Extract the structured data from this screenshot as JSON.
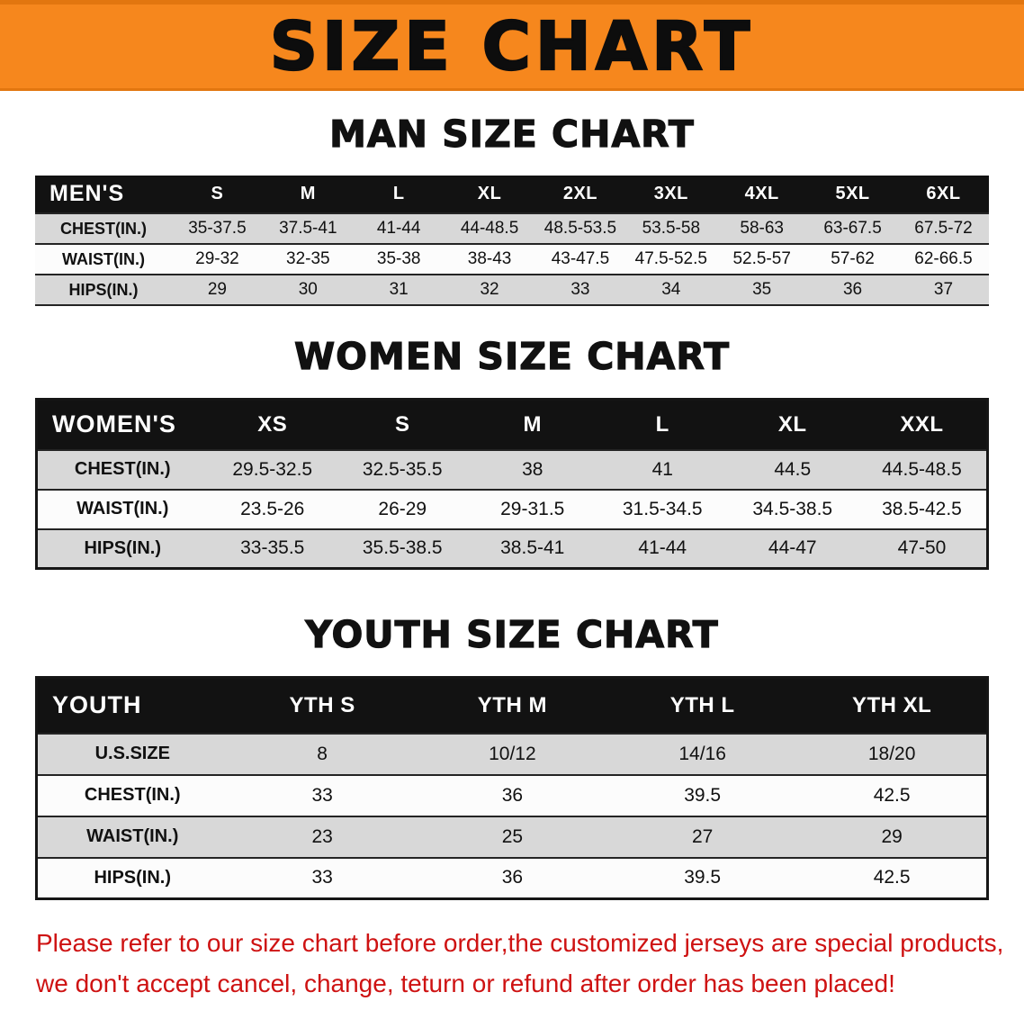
{
  "banner": {
    "title": "SIZE CHART",
    "bg_color": "#f6871d"
  },
  "theme": {
    "header_bg": "#121212",
    "row_shade": "#d8d8d8"
  },
  "chart_data": [
    {
      "type": "table",
      "title": "MAN SIZE CHART",
      "header_label": "MEN'S",
      "columns": [
        "S",
        "M",
        "L",
        "XL",
        "2XL",
        "3XL",
        "4XL",
        "5XL",
        "6XL"
      ],
      "rows": [
        {
          "label": "CHEST(IN.)",
          "values": [
            "35-37.5",
            "37.5-41",
            "41-44",
            "44-48.5",
            "48.5-53.5",
            "53.5-58",
            "58-63",
            "63-67.5",
            "67.5-72"
          ]
        },
        {
          "label": "WAIST(IN.)",
          "values": [
            "29-32",
            "32-35",
            "35-38",
            "38-43",
            "43-47.5",
            "47.5-52.5",
            "52.5-57",
            "57-62",
            "62-66.5"
          ]
        },
        {
          "label": "HIPS(IN.)",
          "values": [
            "29",
            "30",
            "31",
            "32",
            "33",
            "34",
            "35",
            "36",
            "37"
          ]
        }
      ]
    },
    {
      "type": "table",
      "title": "WOMEN SIZE CHART",
      "header_label": "WOMEN'S",
      "columns": [
        "XS",
        "S",
        "M",
        "L",
        "XL",
        "XXL"
      ],
      "rows": [
        {
          "label": "CHEST(IN.)",
          "values": [
            "29.5-32.5",
            "32.5-35.5",
            "38",
            "41",
            "44.5",
            "44.5-48.5"
          ]
        },
        {
          "label": "WAIST(IN.)",
          "values": [
            "23.5-26",
            "26-29",
            "29-31.5",
            "31.5-34.5",
            "34.5-38.5",
            "38.5-42.5"
          ]
        },
        {
          "label": "HIPS(IN.)",
          "values": [
            "33-35.5",
            "35.5-38.5",
            "38.5-41",
            "41-44",
            "44-47",
            "47-50"
          ]
        }
      ]
    },
    {
      "type": "table",
      "title": "YOUTH SIZE CHART",
      "header_label": "YOUTH",
      "columns": [
        "YTH S",
        "YTH M",
        "YTH L",
        "YTH XL"
      ],
      "rows": [
        {
          "label": "U.S.SIZE",
          "values": [
            "8",
            "10/12",
            "14/16",
            "18/20"
          ]
        },
        {
          "label": "CHEST(IN.)",
          "values": [
            "33",
            "36",
            "39.5",
            "42.5"
          ]
        },
        {
          "label": "WAIST(IN.)",
          "values": [
            "23",
            "25",
            "27",
            "29"
          ]
        },
        {
          "label": "HIPS(IN.)",
          "values": [
            "33",
            "36",
            "39.5",
            "42.5"
          ]
        }
      ]
    }
  ],
  "disclaimer": {
    "line1": "Please refer to our size chart before order,the customized jerseys are special products,",
    "line2": "we don't accept cancel, change, teturn or refund after order has been placed!",
    "color": "#ce1212"
  }
}
